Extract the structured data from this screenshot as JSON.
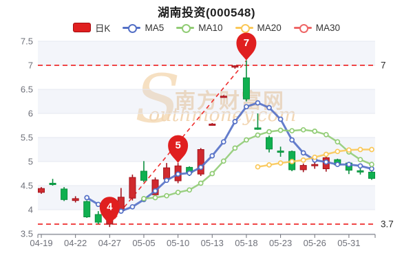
{
  "title": "湖南投资(000548)",
  "legend": {
    "items": [
      {
        "label": "日K",
        "type": "kline",
        "color": "#e01f1f",
        "border": "#a30d12"
      },
      {
        "label": "MA5",
        "type": "line",
        "color": "#5470c6"
      },
      {
        "label": "MA10",
        "type": "line",
        "color": "#91cc75"
      },
      {
        "label": "MA20",
        "type": "line",
        "color": "#fac858"
      },
      {
        "label": "MA30",
        "type": "line",
        "color": "#ee6666"
      }
    ]
  },
  "watermark": {
    "s": "S",
    "cn": "南方财富网",
    "en": "outhmoney.com"
  },
  "axes": {
    "y_ticks": [
      "7.5",
      "7",
      "6.5",
      "6",
      "5.5",
      "5",
      "4.5",
      "4",
      "3.5"
    ],
    "x_labels": [
      "04-19",
      "04-22",
      "04-27",
      "05-05",
      "05-10",
      "05-13",
      "05-18",
      "05-23",
      "05-26",
      "05-31"
    ],
    "x_label_bars": [
      0,
      3,
      6,
      9,
      12,
      15,
      18,
      21,
      24,
      27
    ]
  },
  "chart_data": {
    "type": "candlestick",
    "title": "湖南投资(000548)",
    "ylim": [
      3.5,
      7.5
    ],
    "grid": true,
    "legend_position": "top",
    "up_color": "#d02a2e",
    "up_border": "#a3131c",
    "down_color": "#10b050",
    "down_border": "#0b8f3e",
    "ref_color": "#ee2c2c",
    "marker_color": "#e01f1f",
    "dates": [
      "04-19",
      "04-20",
      "04-21",
      "04-22",
      "04-25",
      "04-26",
      "04-27",
      "04-28",
      "04-29",
      "05-05",
      "05-06",
      "05-09",
      "05-10",
      "05-11",
      "05-12",
      "05-13",
      "05-16",
      "05-17",
      "05-18",
      "05-19",
      "05-20",
      "05-23",
      "05-24",
      "05-25",
      "05-26",
      "05-27",
      "05-30",
      "05-31",
      "06-01",
      "06-02"
    ],
    "ohlc_order": [
      "open",
      "close",
      "low",
      "high"
    ],
    "candles": [
      [
        4.36,
        4.44,
        4.33,
        4.47
      ],
      [
        4.55,
        4.53,
        4.5,
        4.64
      ],
      [
        4.43,
        4.21,
        4.18,
        4.47
      ],
      [
        4.19,
        4.23,
        4.15,
        4.28
      ],
      [
        4.17,
        3.85,
        3.83,
        4.19
      ],
      [
        3.9,
        3.74,
        3.7,
        3.97
      ],
      [
        3.7,
        3.79,
        3.64,
        3.82
      ],
      [
        3.98,
        4.26,
        3.95,
        4.45
      ],
      [
        4.24,
        4.67,
        4.19,
        4.73
      ],
      [
        4.8,
        4.61,
        4.57,
        5.01
      ],
      [
        4.31,
        4.62,
        4.26,
        4.67
      ],
      [
        4.64,
        4.87,
        4.6,
        4.97
      ],
      [
        4.6,
        4.91,
        4.55,
        4.97
      ],
      [
        4.88,
        4.77,
        4.7,
        4.9
      ],
      [
        4.74,
        5.25,
        4.7,
        5.28
      ],
      [
        5.77,
        5.78,
        5.76,
        5.8
      ],
      [
        6.35,
        6.36,
        6.34,
        6.38
      ],
      [
        6.98,
        6.99,
        6.93,
        7.0
      ],
      [
        6.74,
        6.3,
        6.25,
        7.1
      ],
      [
        5.7,
        5.67,
        5.66,
        6.0
      ],
      [
        5.5,
        5.26,
        5.19,
        5.54
      ],
      [
        5.22,
        5.2,
        5.1,
        5.31
      ],
      [
        5.21,
        4.83,
        4.8,
        5.23
      ],
      [
        4.83,
        4.92,
        4.78,
        4.96
      ],
      [
        4.92,
        4.94,
        4.85,
        5.02
      ],
      [
        4.85,
        5.08,
        4.79,
        5.12
      ],
      [
        5.04,
        4.93,
        4.91,
        5.06
      ],
      [
        4.97,
        4.82,
        4.74,
        4.99
      ],
      [
        4.81,
        4.79,
        4.73,
        4.88
      ],
      [
        4.78,
        4.65,
        4.62,
        4.81
      ]
    ],
    "series": [
      {
        "name": "MA5",
        "color": "#5470c6",
        "width": 3,
        "start": 4,
        "values": [
          4.25,
          4.11,
          3.96,
          3.97,
          4.06,
          4.21,
          4.39,
          4.61,
          4.74,
          4.76,
          4.88,
          5.12,
          5.41,
          5.83,
          6.14,
          6.22,
          6.12,
          5.88,
          5.45,
          5.18,
          5.03,
          4.99,
          4.94,
          4.94,
          4.91,
          4.85
        ]
      },
      {
        "name": "MA10",
        "color": "#91cc75",
        "width": 2.5,
        "start": 9,
        "values": [
          4.23,
          4.25,
          4.29,
          4.36,
          4.41,
          4.55,
          4.75,
          5.01,
          5.28,
          5.45,
          5.55,
          5.62,
          5.65,
          5.64,
          5.66,
          5.63,
          5.56,
          5.41,
          5.2,
          5.04,
          4.94
        ]
      },
      {
        "name": "MA20",
        "color": "#fac858",
        "width": 2.5,
        "start": 19,
        "values": [
          4.89,
          4.93,
          4.97,
          5.0,
          5.03,
          5.09,
          5.15,
          5.21,
          5.24,
          5.25,
          5.25
        ]
      },
      {
        "name": "MA30",
        "color": "#ee6666",
        "width": 2.5,
        "start": null,
        "values": []
      }
    ],
    "markers": [
      {
        "bar": 6,
        "price": 3.69,
        "label": "4"
      },
      {
        "bar": 12,
        "price": 4.97,
        "label": "5"
      },
      {
        "bar": 18,
        "price": 7.1,
        "label": "7"
      }
    ],
    "ref_lines": [
      {
        "price": 7,
        "label": "7"
      },
      {
        "price": 3.7,
        "label": "3.7"
      }
    ],
    "trendline": {
      "from_bar": 6,
      "from_price": 3.69,
      "to_bar": 18,
      "to_price": 7.1
    }
  }
}
